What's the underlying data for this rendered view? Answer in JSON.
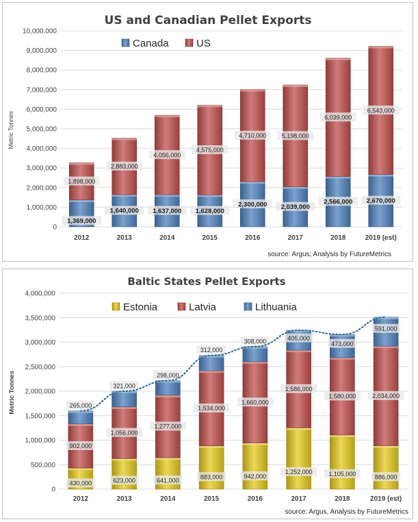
{
  "chart_data": [
    {
      "type": "bar",
      "stacked": true,
      "title": "US and Canadian Pellet Exports",
      "ylabel": "Metric Tonnes",
      "xlabel": "",
      "ylim": [
        0,
        10000000
      ],
      "yticks": [
        "0",
        "1,000,000",
        "2,000,000",
        "3,000,000",
        "4,000,000",
        "5,000,000",
        "6,000,000",
        "7,000,000",
        "8,000,000",
        "9,000,000",
        "10,000,000"
      ],
      "categories": [
        "2012",
        "2013",
        "2014",
        "2015",
        "2016",
        "2017",
        "2018",
        "2019 (est)"
      ],
      "series": [
        {
          "name": "Canada",
          "color": "#4f81bd",
          "values": [
            1369000,
            1640000,
            1637000,
            1628000,
            2300000,
            2039000,
            2566000,
            2670000
          ],
          "labels": [
            "1,369,000",
            "1,640,000",
            "1,637,000",
            "1,628,000",
            "2,300,000",
            "2,039,000",
            "2,566,000",
            "2,670,000"
          ]
        },
        {
          "name": "US",
          "color": "#c0504d",
          "values": [
            1898000,
            2883000,
            4056000,
            4575000,
            4710000,
            5198000,
            6039000,
            6543000
          ],
          "labels": [
            "1,898,000",
            "2,883,000",
            "4,056,000",
            "4,575,000",
            "4,710,000",
            "5,198,000",
            "6,039,000",
            "6,543,000"
          ]
        }
      ],
      "grid": true,
      "legend_position": "top-left",
      "source": "source: Argus; Analysis by FutureMetrics"
    },
    {
      "type": "bar",
      "stacked": true,
      "title": "Baltic States Pellet Exports",
      "ylabel": "Metric Tonnes",
      "xlabel": "",
      "ylim": [
        0,
        4000000
      ],
      "yticks": [
        "0",
        "500,000",
        "1,000,000",
        "1,500,000",
        "2,000,000",
        "2,500,000",
        "3,000,000",
        "3,500,000",
        "4,000,000"
      ],
      "categories": [
        "2012",
        "2013",
        "2014",
        "2015",
        "2016",
        "2017",
        "2018",
        "2019 (est)"
      ],
      "series": [
        {
          "name": "Estonia",
          "color": "#e6c91e",
          "values": [
            430000,
            623000,
            641000,
            883000,
            942000,
            1252000,
            1105000,
            886000
          ],
          "labels": [
            "430,000",
            "623,000",
            "641,000",
            "883,000",
            "942,000",
            "1,252,000",
            "1,105,000",
            "886,000"
          ]
        },
        {
          "name": "Latvia",
          "color": "#c0504d",
          "values": [
            902000,
            1056000,
            1277000,
            1534000,
            1660000,
            1586000,
            1580000,
            2034000
          ],
          "labels": [
            "902,000",
            "1,056,000",
            "1,277,000",
            "1,534,000",
            "1,660,000",
            "1,586,000",
            "1,580,000",
            "2,034,000"
          ]
        },
        {
          "name": "Lithuania",
          "color": "#4f81bd",
          "values": [
            265000,
            321000,
            298000,
            312000,
            308000,
            405000,
            473000,
            591000
          ],
          "labels": [
            "265,000",
            "321,000",
            "298,000",
            "312,000",
            "308,000",
            "405,000",
            "473,000",
            "591,000"
          ]
        }
      ],
      "trendline": "dotted",
      "grid": true,
      "legend_position": "top",
      "source": "source: Argus, Analysis by FutureMetrics"
    }
  ]
}
